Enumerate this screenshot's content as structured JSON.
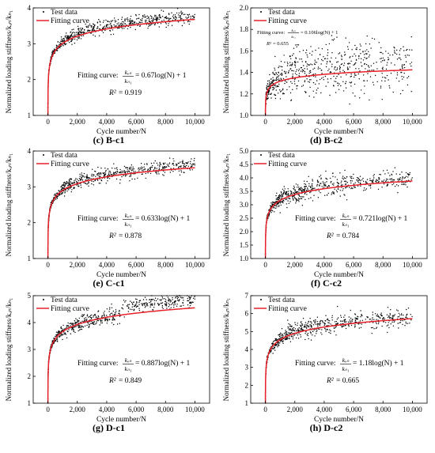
{
  "figure": {
    "legend_test": "Test data",
    "legend_fit": "Fitting curve",
    "xlabel": "Cycle number/N",
    "fit_prefix": "Fitting curve:",
    "colors": {
      "fit": "#e8202a",
      "data": "#000000",
      "axis": "#000000"
    }
  },
  "chart_data": [
    {
      "type": "scatter",
      "caption_letter": "(c)",
      "caption_name": "B-c1",
      "ylabel": "Normalized loading stiffness/kₒₙ/kₙ₁",
      "xlabel": "Cycle number/N",
      "xlim": [
        -1000,
        11000
      ],
      "ylim": [
        1,
        4
      ],
      "xticks": [
        0,
        2000,
        4000,
        6000,
        8000,
        10000
      ],
      "xtick_labels": [
        "0",
        "2,000",
        "4,000",
        "6,000",
        "8,000",
        "10,000"
      ],
      "yticks": [
        1,
        2,
        3,
        4
      ],
      "ytick_labels": [
        "1",
        "2",
        "3",
        "4"
      ],
      "fit_coef": 0.67,
      "fit_eq": "= 0.67log(N) + 1",
      "r2": "= 0.919",
      "series": [
        {
          "name": "Test data",
          "spread": 0.09,
          "shift": 0.08
        },
        {
          "name": "Fitting curve"
        }
      ]
    },
    {
      "type": "scatter",
      "caption_letter": "(d)",
      "caption_name": "B-c2",
      "ylabel": "Normalized loading stiffness/kₒₙ/kₙ₁",
      "xlabel": "Cycle number/N",
      "xlim": [
        -1000,
        11000
      ],
      "ylim": [
        1.0,
        2.0
      ],
      "xticks": [
        0,
        2000,
        4000,
        6000,
        8000,
        10000
      ],
      "xtick_labels": [
        "0",
        "2,000",
        "4,000",
        "6,000",
        "8,000",
        "10,000"
      ],
      "yticks": [
        1.0,
        1.2,
        1.4,
        1.6,
        1.8,
        2.0
      ],
      "ytick_labels": [
        "1.0",
        "1.2",
        "1.4",
        "1.6",
        "1.8",
        "2.0"
      ],
      "fit_coef": 0.106,
      "fit_eq": "= 0.106log(N) + 1",
      "r2": "= 0.655",
      "series": [
        {
          "name": "Test data",
          "spread": 0.12,
          "shift": 0.05
        },
        {
          "name": "Fitting curve"
        }
      ]
    },
    {
      "type": "scatter",
      "caption_letter": "(e)",
      "caption_name": "C-c1",
      "ylabel": "Normalized loading stiffness/kₒₙ/kₙ₁",
      "xlabel": "Cycle number/N",
      "xlim": [
        -1000,
        11000
      ],
      "ylim": [
        1,
        4
      ],
      "xticks": [
        0,
        2000,
        4000,
        6000,
        8000,
        10000
      ],
      "xtick_labels": [
        "0",
        "2,000",
        "4,000",
        "6,000",
        "8,000",
        "10,000"
      ],
      "yticks": [
        1,
        2,
        3,
        4
      ],
      "ytick_labels": [
        "1",
        "2",
        "3",
        "4"
      ],
      "fit_coef": 0.633,
      "fit_eq": "= 0.633log(N) + 1",
      "r2": "= 0.878",
      "series": [
        {
          "name": "Test data",
          "spread": 0.1,
          "shift": 0.06
        },
        {
          "name": "Fitting curve"
        }
      ]
    },
    {
      "type": "scatter",
      "caption_letter": "(f)",
      "caption_name": "C-c2",
      "ylabel": "Normalized loading stiffness/kₒₙ/kₙ₁",
      "xlabel": "Cycle number/N",
      "xlim": [
        -1000,
        11000
      ],
      "ylim": [
        1.0,
        5.0
      ],
      "xticks": [
        0,
        2000,
        4000,
        6000,
        8000,
        10000
      ],
      "xtick_labels": [
        "0",
        "2,000",
        "4,000",
        "6,000",
        "8,000",
        "10,000"
      ],
      "yticks": [
        1.0,
        1.5,
        2.0,
        2.5,
        3.0,
        3.5,
        4.0,
        4.5,
        5.0
      ],
      "ytick_labels": [
        "1.0",
        "1.5",
        "2.0",
        "2.5",
        "3.0",
        "3.5",
        "4.0",
        "4.5",
        "5.0"
      ],
      "fit_coef": 0.721,
      "fit_eq": "= 0.721log(N) + 1",
      "r2": "= 0.784",
      "series": [
        {
          "name": "Test data",
          "spread": 0.18,
          "shift": 0.08
        },
        {
          "name": "Fitting curve"
        }
      ]
    },
    {
      "type": "scatter",
      "caption_letter": "(g)",
      "caption_name": "D-c1",
      "ylabel": "Normalized loading stiffness/kₒₙ/kₙ₁",
      "xlabel": "Cycle number/N",
      "xlim": [
        -1000,
        11000
      ],
      "ylim": [
        1,
        5
      ],
      "xticks": [
        0,
        2000,
        4000,
        6000,
        8000,
        10000
      ],
      "xtick_labels": [
        "0",
        "2,000",
        "4,000",
        "6,000",
        "8,000",
        "10,000"
      ],
      "yticks": [
        1,
        2,
        3,
        4,
        5
      ],
      "ytick_labels": [
        "1",
        "2",
        "3",
        "4",
        "5"
      ],
      "fit_coef": 0.887,
      "fit_eq": "= 0.887log(N) + 1",
      "r2": "= 0.849",
      "step_at": 5000,
      "step_size": 0.3,
      "series": [
        {
          "name": "Test data",
          "spread": 0.13,
          "shift": 0.0
        },
        {
          "name": "Fitting curve"
        }
      ]
    },
    {
      "type": "scatter",
      "caption_letter": "(h)",
      "caption_name": "D-c2",
      "ylabel": "Normalized loading stiffness/kₒₙ/kₙ₁",
      "xlabel": "Cycle number/N",
      "xlim": [
        -1000,
        11000
      ],
      "ylim": [
        1,
        7
      ],
      "xticks": [
        0,
        2000,
        4000,
        6000,
        8000,
        10000
      ],
      "xtick_labels": [
        "0",
        "2,000",
        "4,000",
        "6,000",
        "8,000",
        "10,000"
      ],
      "yticks": [
        1,
        2,
        3,
        4,
        5,
        6,
        7
      ],
      "ytick_labels": [
        "1",
        "2",
        "3",
        "4",
        "5",
        "6",
        "7"
      ],
      "fit_coef": 1.18,
      "fit_eq": "= 1.18log(N) + 1",
      "r2": "= 0.665",
      "series": [
        {
          "name": "Test data",
          "spread": 0.25,
          "shift": 0.1
        },
        {
          "name": "Fitting curve"
        }
      ]
    }
  ]
}
